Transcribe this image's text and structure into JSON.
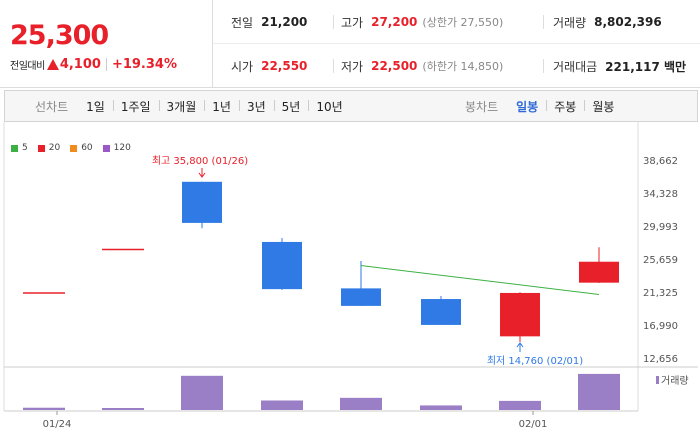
{
  "quote": {
    "price": "25,300",
    "change_label": "전일대비",
    "change_value": "4,100",
    "change_percent": "+19.34%",
    "color_up": "#e8202a"
  },
  "info": {
    "prev_label": "전일",
    "prev_value": "21,200",
    "high_label": "고가",
    "high_value": "27,200",
    "upper_limit": "(상한가 27,550)",
    "volume_label": "거래량",
    "volume_value": "8,802,396",
    "open_label": "시가",
    "open_value": "22,550",
    "low_label": "저가",
    "low_value": "22,500",
    "lower_limit": "(하한가 14,850)",
    "amount_label": "거래대금",
    "amount_value": "221,117 백만"
  },
  "toolbar": {
    "line_label": "선차트",
    "line_items": [
      "1일",
      "1주일",
      "3개월",
      "1년",
      "3년",
      "5년",
      "10년"
    ],
    "candle_label": "봉차트",
    "candle_items": [
      "일봉",
      "주봉",
      "월봉"
    ],
    "candle_active": "일봉"
  },
  "legend": [
    {
      "name": "5",
      "color": "#3cb043"
    },
    {
      "name": "20",
      "color": "#e8202a"
    },
    {
      "name": "60",
      "color": "#f08c1e"
    },
    {
      "name": "120",
      "color": "#9b59c6"
    }
  ],
  "chart_data": {
    "type": "candlestick",
    "ylim": [
      12656,
      38662
    ],
    "y_ticks": [
      "38,662",
      "34,328",
      "29,993",
      "25,659",
      "21,325",
      "16,990",
      "12,656"
    ],
    "x_tick_labels": [
      "01/24",
      "02/01"
    ],
    "up_color": "#e8202a",
    "down_color": "#2f7ae5",
    "candles": [
      {
        "open": 21200,
        "high": 21200,
        "low": 21200,
        "close": 21200,
        "dir": "flat"
      },
      {
        "open": 26900,
        "high": 26900,
        "low": 26900,
        "close": 26900,
        "dir": "flat"
      },
      {
        "open": 35800,
        "high": 35800,
        "low": 29700,
        "close": 30400,
        "dir": "down"
      },
      {
        "open": 27900,
        "high": 28400,
        "low": 21600,
        "close": 21700,
        "dir": "down"
      },
      {
        "open": 21800,
        "high": 25400,
        "low": 19500,
        "close": 19500,
        "dir": "down"
      },
      {
        "open": 20400,
        "high": 20800,
        "low": 17000,
        "close": 17000,
        "dir": "down"
      },
      {
        "open": 15500,
        "high": 21300,
        "low": 14760,
        "close": 21200,
        "dir": "up"
      },
      {
        "open": 22550,
        "high": 27200,
        "low": 22500,
        "close": 25300,
        "dir": "up"
      }
    ],
    "ma_line": {
      "name": "5",
      "start_index": 4,
      "start_value": 24800,
      "end_value": 21000,
      "color": "#3cb043"
    },
    "annotations": {
      "high_text": "최고 35,800 (01/26)",
      "low_text": "최저 14,760 (02/01)"
    },
    "volume": {
      "label": "거래량",
      "color": "#9b7fc6",
      "values": [
        0.06,
        0.04,
        0.9,
        0.25,
        0.32,
        0.12,
        0.24,
        0.95
      ]
    }
  }
}
